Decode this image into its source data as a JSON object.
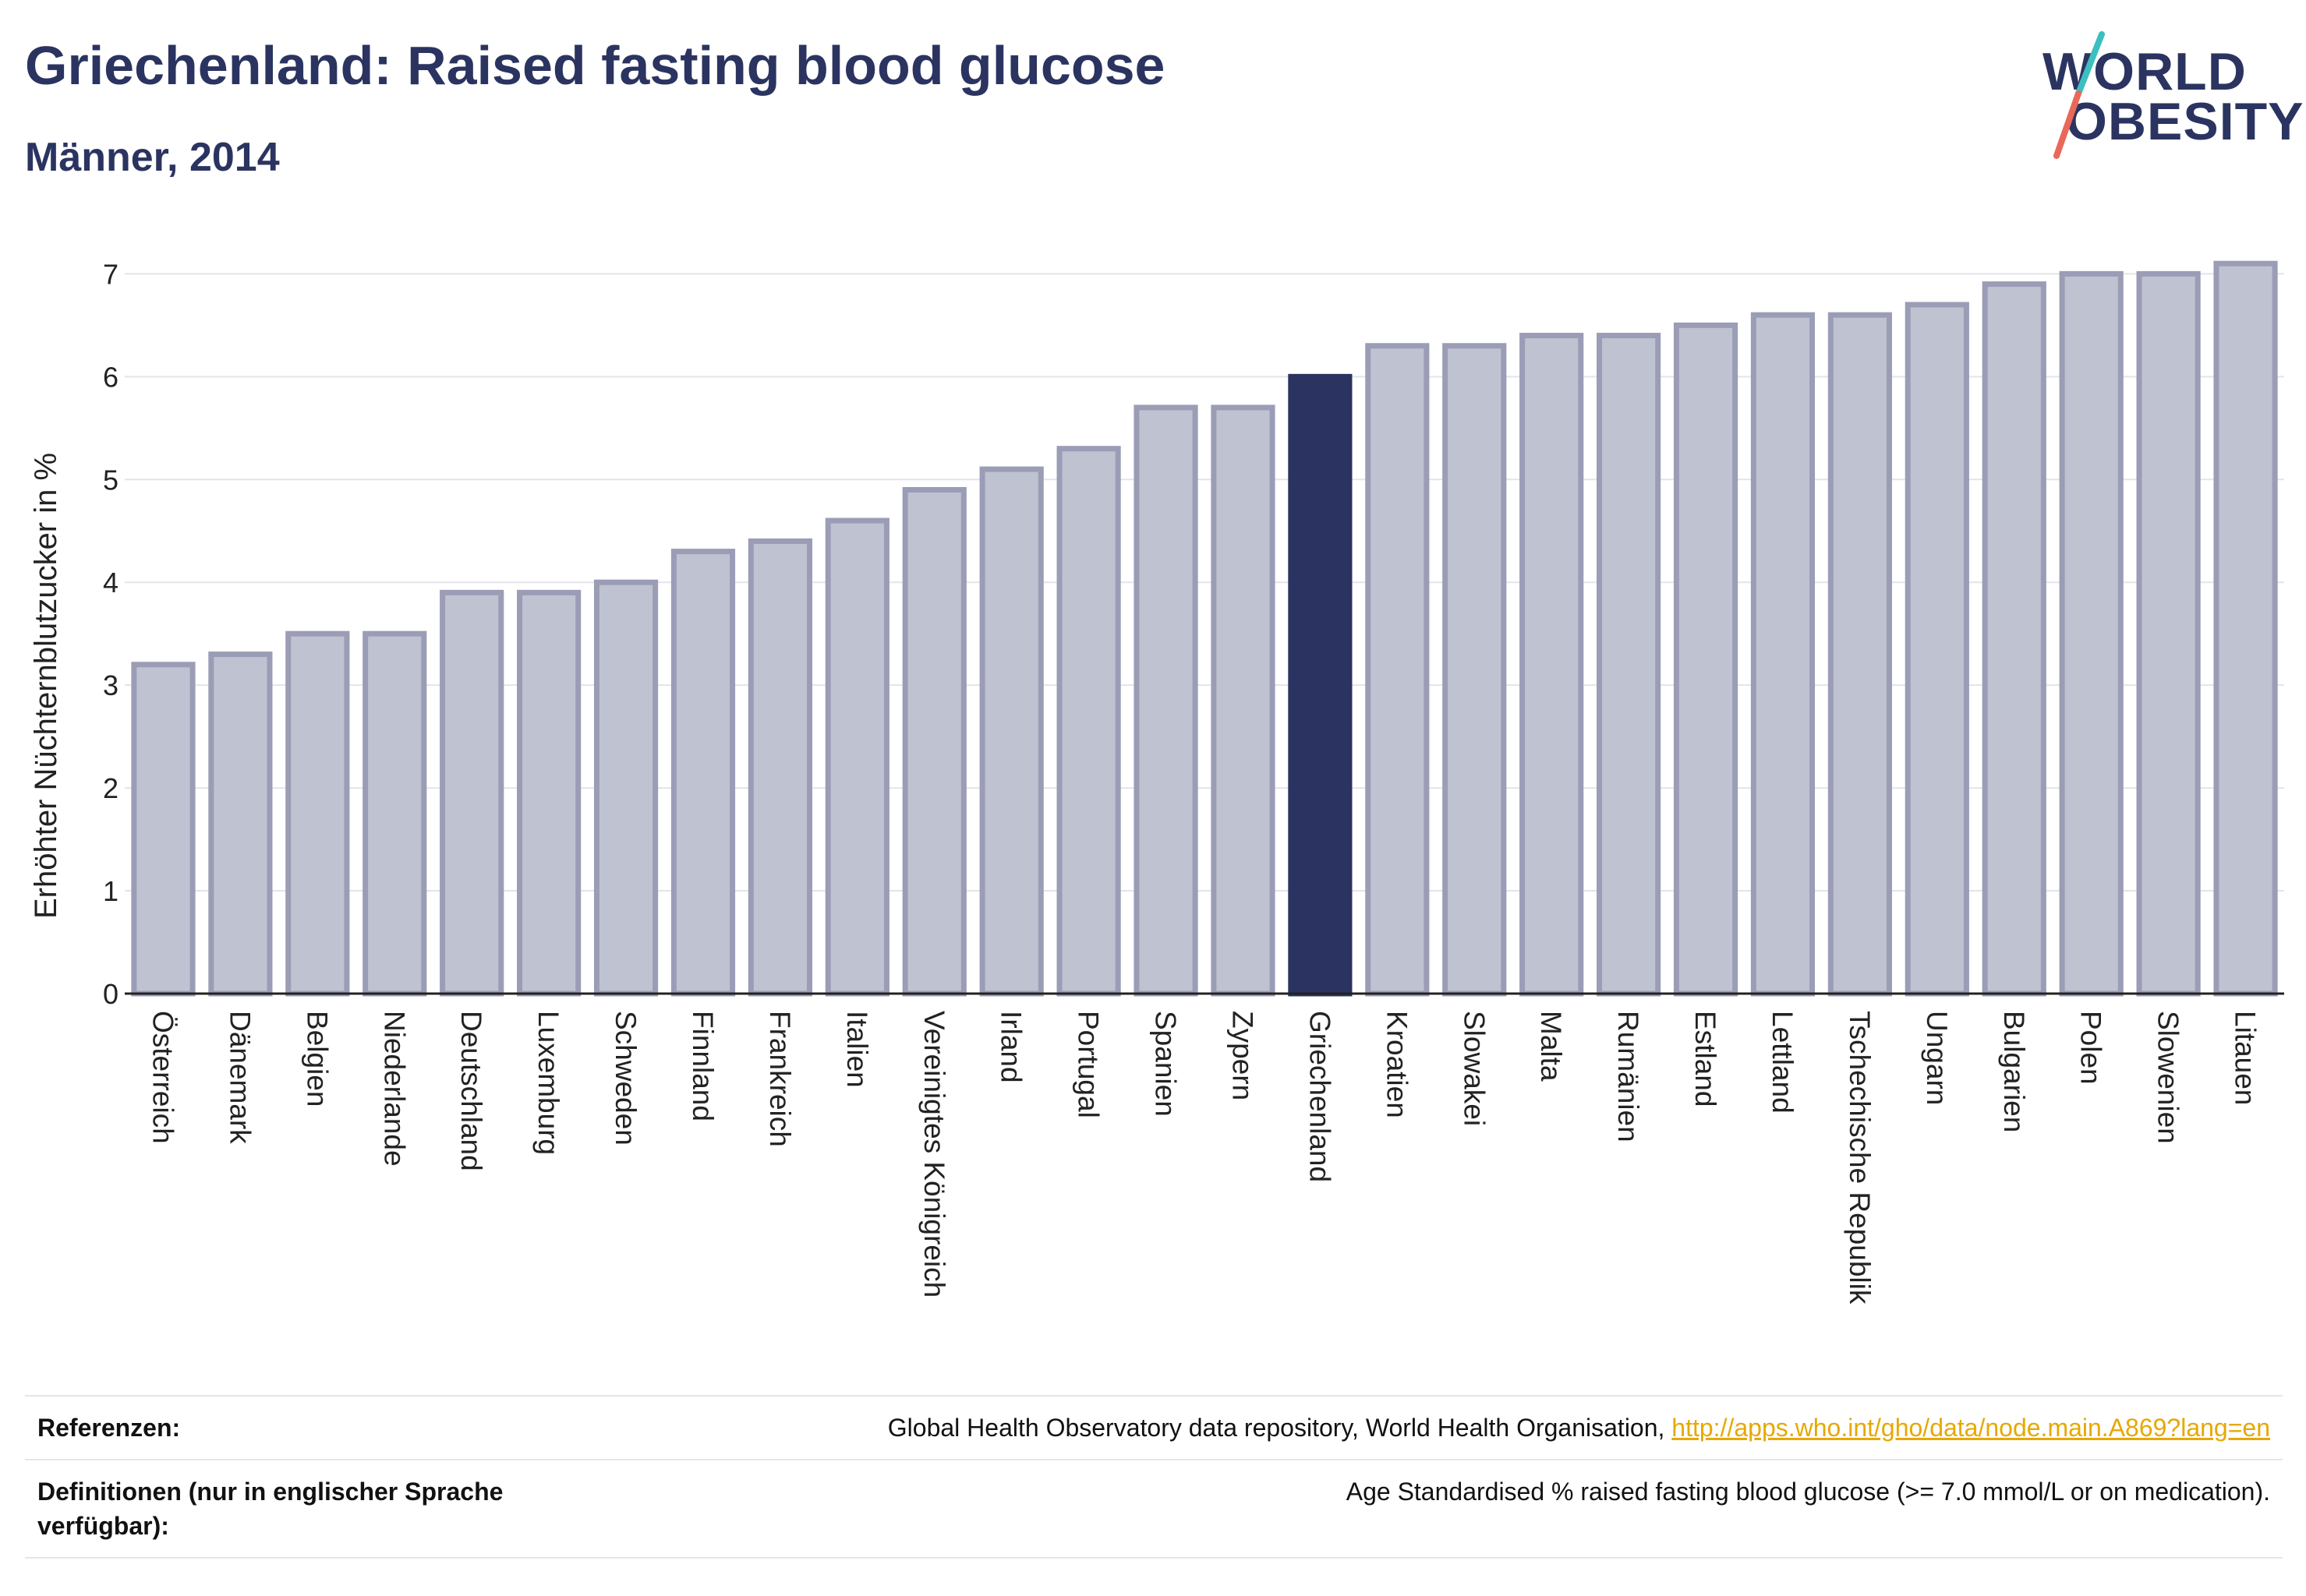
{
  "header": {
    "title": "Griechenland: Raised fasting blood glucose",
    "subtitle": "Männer, 2014"
  },
  "logo": {
    "line1": "WORLD",
    "line2": "OBESITY",
    "accent_teal": "#3bbfc0",
    "accent_red": "#e8685a"
  },
  "colors": {
    "bar": "#bfc2d0",
    "bar_border": "#9a9db5",
    "highlight": "#2b3460",
    "grid": "#e3e4ea",
    "axis": "#2b3460"
  },
  "chart_data": {
    "type": "bar",
    "ylabel": "Erhöhter Nüchternblutzucker in %",
    "ylim": [
      0,
      7.2
    ],
    "yticks": [
      0,
      1,
      2,
      3,
      4,
      5,
      6,
      7
    ],
    "grid": true,
    "highlight": "Griechenland",
    "categories": [
      "Österreich",
      "Dänemark",
      "Belgien",
      "Niederlande",
      "Deutschland",
      "Luxemburg",
      "Schweden",
      "Finnland",
      "Frankreich",
      "Italien",
      "Vereinigtes Königreich",
      "Irland",
      "Portugal",
      "Spanien",
      "Zypern",
      "Griechenland",
      "Kroatien",
      "Slowakei",
      "Malta",
      "Rumänien",
      "Estland",
      "Lettland",
      "Tschechische Republik",
      "Ungarn",
      "Bulgarien",
      "Polen",
      "Slowenien",
      "Litauen"
    ],
    "values": [
      3.2,
      3.3,
      3.5,
      3.5,
      3.9,
      3.9,
      4.0,
      4.3,
      4.4,
      4.6,
      4.9,
      5.1,
      5.3,
      5.7,
      5.7,
      6.0,
      6.3,
      6.3,
      6.4,
      6.4,
      6.5,
      6.6,
      6.6,
      6.7,
      6.9,
      7.0,
      7.0,
      7.1
    ]
  },
  "footer": {
    "references_label": "Referenzen:",
    "references_text": "Global Health Observatory data repository, World Health Organisation, ",
    "references_link": "http://apps.who.int/gho/data/node.main.A869?lang=en",
    "definitions_label": "Definitionen (nur in englischer Sprache verfügbar):",
    "definitions_text": "Age Standardised % raised fasting blood glucose (>= 7.0 mmol/L or on medication)."
  }
}
